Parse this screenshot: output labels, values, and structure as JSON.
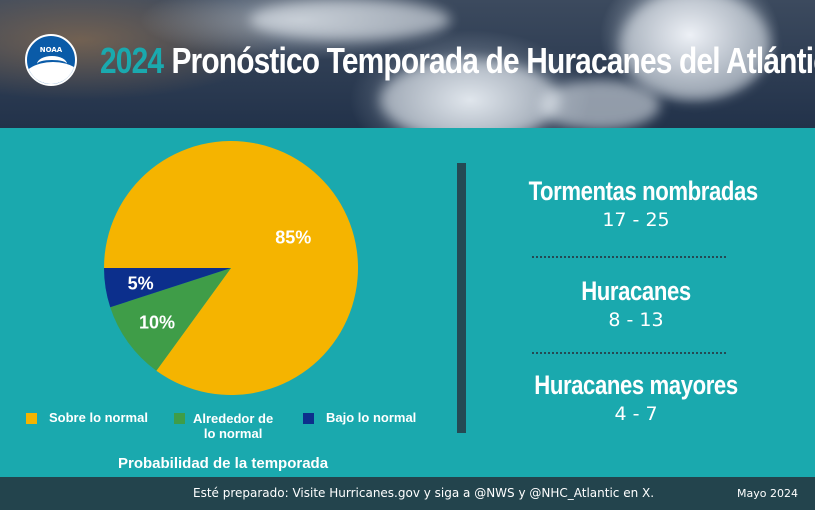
{
  "header": {
    "logo_text": "NOAA",
    "year": "2024",
    "title": "Pronóstico Temporada de Huracanes del Atlántico"
  },
  "chart_data": {
    "type": "pie",
    "title": "",
    "subtitle": "Probabilidad de la temporada",
    "slices": [
      {
        "label": "Sobre lo normal",
        "value": 85,
        "display": "85%",
        "color": "#f5b400"
      },
      {
        "label": "Alrededor de lo normal",
        "value": 10,
        "display": "10%",
        "color": "#3f9d48"
      },
      {
        "label": "Bajo lo normal",
        "value": 5,
        "display": "5%",
        "color": "#0c2f8c"
      }
    ]
  },
  "legend": {
    "above": "Sobre lo normal",
    "near_line1": "Alrededor de",
    "near_line2": "lo normal",
    "below": "Bajo lo normal"
  },
  "stats": [
    {
      "label": "Tormentas nombradas",
      "range": "17 - 25"
    },
    {
      "label": "Huracanes",
      "range": "8 - 13"
    },
    {
      "label": "Huracanes mayores",
      "range": "4 - 7"
    }
  ],
  "footer": {
    "message": "Esté preparado: Visite Hurricanes.gov y siga a @NWS y @NHC_Atlantic en X.",
    "date": "Mayo  2024"
  }
}
